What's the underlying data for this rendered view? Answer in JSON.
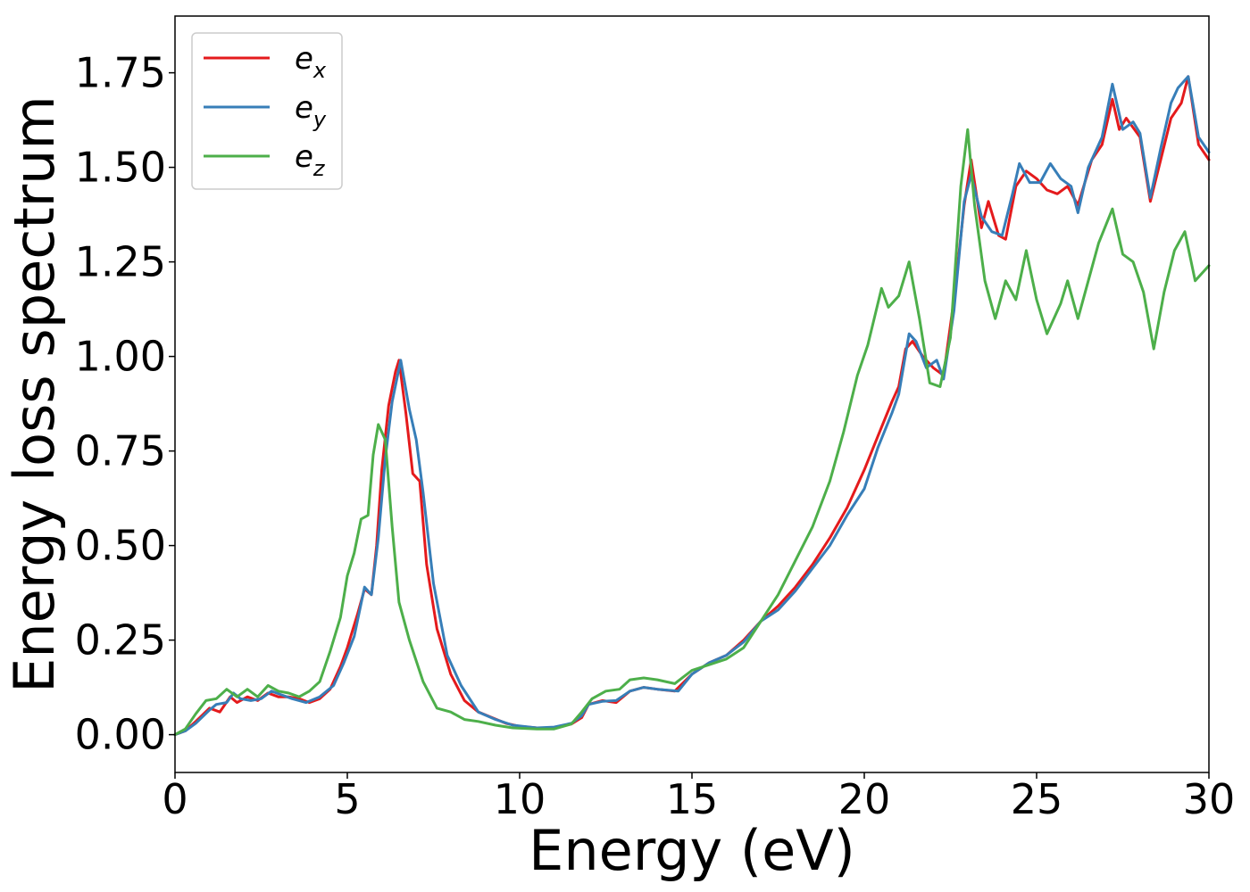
{
  "chart_data": {
    "type": "line",
    "xlabel": "Energy (eV)",
    "ylabel": "Energy loss spectrum",
    "xlim": [
      0,
      30
    ],
    "ylim": [
      -0.1,
      1.9
    ],
    "xticks": [
      {
        "value": 0,
        "label": "0"
      },
      {
        "value": 5,
        "label": "5"
      },
      {
        "value": 10,
        "label": "10"
      },
      {
        "value": 15,
        "label": "15"
      },
      {
        "value": 20,
        "label": "20"
      },
      {
        "value": 25,
        "label": "25"
      },
      {
        "value": 30,
        "label": "30"
      }
    ],
    "yticks": [
      {
        "value": 0.0,
        "label": "0.00"
      },
      {
        "value": 0.25,
        "label": "0.25"
      },
      {
        "value": 0.5,
        "label": "0.50"
      },
      {
        "value": 0.75,
        "label": "0.75"
      },
      {
        "value": 1.0,
        "label": "1.00"
      },
      {
        "value": 1.25,
        "label": "1.25"
      },
      {
        "value": 1.5,
        "label": "1.50"
      },
      {
        "value": 1.75,
        "label": "1.75"
      }
    ],
    "grid": false,
    "legend_position": "top-left",
    "series": [
      {
        "name": "e",
        "subscript": "x",
        "color": "#e41a1c",
        "points": [
          [
            0,
            0
          ],
          [
            0.3,
            0.01
          ],
          [
            0.6,
            0.035
          ],
          [
            1.0,
            0.07
          ],
          [
            1.3,
            0.06
          ],
          [
            1.6,
            0.1
          ],
          [
            1.8,
            0.085
          ],
          [
            2.1,
            0.1
          ],
          [
            2.4,
            0.09
          ],
          [
            2.7,
            0.11
          ],
          [
            3.0,
            0.1
          ],
          [
            3.3,
            0.1
          ],
          [
            3.6,
            0.095
          ],
          [
            3.9,
            0.085
          ],
          [
            4.2,
            0.095
          ],
          [
            4.5,
            0.12
          ],
          [
            4.8,
            0.18
          ],
          [
            5.0,
            0.23
          ],
          [
            5.3,
            0.32
          ],
          [
            5.5,
            0.385
          ],
          [
            5.7,
            0.37
          ],
          [
            5.85,
            0.5
          ],
          [
            6.0,
            0.7
          ],
          [
            6.2,
            0.87
          ],
          [
            6.4,
            0.96
          ],
          [
            6.5,
            0.99
          ],
          [
            6.7,
            0.85
          ],
          [
            6.9,
            0.69
          ],
          [
            7.1,
            0.67
          ],
          [
            7.3,
            0.45
          ],
          [
            7.6,
            0.28
          ],
          [
            8.0,
            0.16
          ],
          [
            8.4,
            0.09
          ],
          [
            8.8,
            0.06
          ],
          [
            9.2,
            0.045
          ],
          [
            9.6,
            0.03
          ],
          [
            10.0,
            0.022
          ],
          [
            10.5,
            0.018
          ],
          [
            11.0,
            0.018
          ],
          [
            11.5,
            0.028
          ],
          [
            11.8,
            0.045
          ],
          [
            12.0,
            0.08
          ],
          [
            12.4,
            0.09
          ],
          [
            12.8,
            0.085
          ],
          [
            13.2,
            0.115
          ],
          [
            13.6,
            0.125
          ],
          [
            14.0,
            0.12
          ],
          [
            14.5,
            0.115
          ],
          [
            15.0,
            0.16
          ],
          [
            15.5,
            0.19
          ],
          [
            16.0,
            0.21
          ],
          [
            16.5,
            0.25
          ],
          [
            17.0,
            0.3
          ],
          [
            17.5,
            0.34
          ],
          [
            18.0,
            0.39
          ],
          [
            18.5,
            0.45
          ],
          [
            19.0,
            0.52
          ],
          [
            19.5,
            0.6
          ],
          [
            20.0,
            0.7
          ],
          [
            20.4,
            0.79
          ],
          [
            20.8,
            0.88
          ],
          [
            21.0,
            0.92
          ],
          [
            21.2,
            1.02
          ],
          [
            21.4,
            1.04
          ],
          [
            21.7,
            1.0
          ],
          [
            22.0,
            0.97
          ],
          [
            22.3,
            0.95
          ],
          [
            22.6,
            1.15
          ],
          [
            22.9,
            1.4
          ],
          [
            23.1,
            1.52
          ],
          [
            23.4,
            1.34
          ],
          [
            23.6,
            1.41
          ],
          [
            23.9,
            1.32
          ],
          [
            24.1,
            1.31
          ],
          [
            24.4,
            1.45
          ],
          [
            24.7,
            1.49
          ],
          [
            25.0,
            1.47
          ],
          [
            25.3,
            1.44
          ],
          [
            25.6,
            1.43
          ],
          [
            25.9,
            1.45
          ],
          [
            26.2,
            1.4
          ],
          [
            26.6,
            1.52
          ],
          [
            26.9,
            1.56
          ],
          [
            27.2,
            1.68
          ],
          [
            27.4,
            1.6
          ],
          [
            27.6,
            1.63
          ],
          [
            28.0,
            1.58
          ],
          [
            28.3,
            1.41
          ],
          [
            28.6,
            1.52
          ],
          [
            28.9,
            1.63
          ],
          [
            29.2,
            1.67
          ],
          [
            29.4,
            1.74
          ],
          [
            29.7,
            1.56
          ],
          [
            30.0,
            1.52
          ]
        ]
      },
      {
        "name": "e",
        "subscript": "y",
        "color": "#377eb8",
        "points": [
          [
            0,
            0
          ],
          [
            0.3,
            0.01
          ],
          [
            0.6,
            0.03
          ],
          [
            1.0,
            0.065
          ],
          [
            1.2,
            0.08
          ],
          [
            1.5,
            0.085
          ],
          [
            1.7,
            0.11
          ],
          [
            1.9,
            0.095
          ],
          [
            2.2,
            0.09
          ],
          [
            2.5,
            0.095
          ],
          [
            2.8,
            0.115
          ],
          [
            3.1,
            0.105
          ],
          [
            3.4,
            0.095
          ],
          [
            3.8,
            0.085
          ],
          [
            4.2,
            0.1
          ],
          [
            4.6,
            0.13
          ],
          [
            4.9,
            0.19
          ],
          [
            5.2,
            0.26
          ],
          [
            5.5,
            0.39
          ],
          [
            5.7,
            0.37
          ],
          [
            5.9,
            0.52
          ],
          [
            6.1,
            0.73
          ],
          [
            6.3,
            0.88
          ],
          [
            6.55,
            0.99
          ],
          [
            6.8,
            0.86
          ],
          [
            7.0,
            0.78
          ],
          [
            7.2,
            0.64
          ],
          [
            7.5,
            0.4
          ],
          [
            7.9,
            0.21
          ],
          [
            8.3,
            0.13
          ],
          [
            8.8,
            0.06
          ],
          [
            9.3,
            0.04
          ],
          [
            9.8,
            0.025
          ],
          [
            10.5,
            0.018
          ],
          [
            11.0,
            0.02
          ],
          [
            11.5,
            0.03
          ],
          [
            11.8,
            0.05
          ],
          [
            12.0,
            0.08
          ],
          [
            12.4,
            0.088
          ],
          [
            12.8,
            0.09
          ],
          [
            13.2,
            0.115
          ],
          [
            13.6,
            0.125
          ],
          [
            14.0,
            0.12
          ],
          [
            14.6,
            0.115
          ],
          [
            15.0,
            0.16
          ],
          [
            15.5,
            0.19
          ],
          [
            16.0,
            0.21
          ],
          [
            16.5,
            0.245
          ],
          [
            17.0,
            0.3
          ],
          [
            17.5,
            0.33
          ],
          [
            18.0,
            0.38
          ],
          [
            18.5,
            0.44
          ],
          [
            19.0,
            0.5
          ],
          [
            19.5,
            0.58
          ],
          [
            20.0,
            0.65
          ],
          [
            20.4,
            0.76
          ],
          [
            20.8,
            0.85
          ],
          [
            21.0,
            0.9
          ],
          [
            21.3,
            1.06
          ],
          [
            21.5,
            1.04
          ],
          [
            21.8,
            0.97
          ],
          [
            22.1,
            0.99
          ],
          [
            22.3,
            0.94
          ],
          [
            22.6,
            1.12
          ],
          [
            22.9,
            1.41
          ],
          [
            23.1,
            1.48
          ],
          [
            23.4,
            1.37
          ],
          [
            23.7,
            1.33
          ],
          [
            24.0,
            1.32
          ],
          [
            24.3,
            1.43
          ],
          [
            24.5,
            1.51
          ],
          [
            24.8,
            1.46
          ],
          [
            25.1,
            1.46
          ],
          [
            25.4,
            1.51
          ],
          [
            25.7,
            1.47
          ],
          [
            26.0,
            1.45
          ],
          [
            26.2,
            1.38
          ],
          [
            26.5,
            1.5
          ],
          [
            26.9,
            1.58
          ],
          [
            27.2,
            1.72
          ],
          [
            27.5,
            1.6
          ],
          [
            27.8,
            1.62
          ],
          [
            28.0,
            1.59
          ],
          [
            28.3,
            1.42
          ],
          [
            28.6,
            1.55
          ],
          [
            28.9,
            1.67
          ],
          [
            29.1,
            1.71
          ],
          [
            29.4,
            1.74
          ],
          [
            29.7,
            1.58
          ],
          [
            30.0,
            1.54
          ]
        ]
      },
      {
        "name": "e",
        "subscript": "z",
        "color": "#4daf4a",
        "points": [
          [
            0,
            0
          ],
          [
            0.3,
            0.015
          ],
          [
            0.6,
            0.055
          ],
          [
            0.9,
            0.09
          ],
          [
            1.2,
            0.095
          ],
          [
            1.5,
            0.12
          ],
          [
            1.8,
            0.1
          ],
          [
            2.1,
            0.12
          ],
          [
            2.4,
            0.1
          ],
          [
            2.7,
            0.13
          ],
          [
            3.0,
            0.115
          ],
          [
            3.3,
            0.11
          ],
          [
            3.6,
            0.1
          ],
          [
            3.9,
            0.115
          ],
          [
            4.2,
            0.14
          ],
          [
            4.5,
            0.22
          ],
          [
            4.8,
            0.31
          ],
          [
            5.0,
            0.42
          ],
          [
            5.2,
            0.48
          ],
          [
            5.4,
            0.57
          ],
          [
            5.6,
            0.58
          ],
          [
            5.75,
            0.74
          ],
          [
            5.9,
            0.82
          ],
          [
            6.1,
            0.78
          ],
          [
            6.3,
            0.55
          ],
          [
            6.5,
            0.35
          ],
          [
            6.8,
            0.25
          ],
          [
            7.2,
            0.14
          ],
          [
            7.6,
            0.07
          ],
          [
            8.0,
            0.06
          ],
          [
            8.4,
            0.04
          ],
          [
            8.8,
            0.035
          ],
          [
            9.3,
            0.025
          ],
          [
            9.8,
            0.018
          ],
          [
            10.5,
            0.015
          ],
          [
            11.0,
            0.015
          ],
          [
            11.5,
            0.028
          ],
          [
            11.8,
            0.06
          ],
          [
            12.1,
            0.095
          ],
          [
            12.5,
            0.115
          ],
          [
            12.9,
            0.12
          ],
          [
            13.2,
            0.145
          ],
          [
            13.6,
            0.15
          ],
          [
            14.0,
            0.145
          ],
          [
            14.5,
            0.135
          ],
          [
            15.0,
            0.17
          ],
          [
            15.5,
            0.185
          ],
          [
            16.0,
            0.2
          ],
          [
            16.5,
            0.23
          ],
          [
            17.0,
            0.3
          ],
          [
            17.5,
            0.37
          ],
          [
            18.0,
            0.46
          ],
          [
            18.5,
            0.55
          ],
          [
            19.0,
            0.67
          ],
          [
            19.4,
            0.8
          ],
          [
            19.8,
            0.95
          ],
          [
            20.1,
            1.03
          ],
          [
            20.5,
            1.18
          ],
          [
            20.7,
            1.13
          ],
          [
            21.0,
            1.16
          ],
          [
            21.3,
            1.25
          ],
          [
            21.6,
            1.1
          ],
          [
            21.9,
            0.93
          ],
          [
            22.2,
            0.92
          ],
          [
            22.5,
            1.05
          ],
          [
            22.8,
            1.45
          ],
          [
            23.0,
            1.6
          ],
          [
            23.2,
            1.4
          ],
          [
            23.5,
            1.2
          ],
          [
            23.8,
            1.1
          ],
          [
            24.1,
            1.2
          ],
          [
            24.4,
            1.15
          ],
          [
            24.7,
            1.28
          ],
          [
            25.0,
            1.15
          ],
          [
            25.3,
            1.06
          ],
          [
            25.7,
            1.14
          ],
          [
            25.9,
            1.2
          ],
          [
            26.2,
            1.1
          ],
          [
            26.5,
            1.2
          ],
          [
            26.8,
            1.3
          ],
          [
            27.2,
            1.39
          ],
          [
            27.5,
            1.27
          ],
          [
            27.8,
            1.25
          ],
          [
            28.1,
            1.17
          ],
          [
            28.4,
            1.02
          ],
          [
            28.7,
            1.17
          ],
          [
            29.0,
            1.28
          ],
          [
            29.3,
            1.33
          ],
          [
            29.6,
            1.2
          ],
          [
            30.0,
            1.24
          ]
        ]
      }
    ]
  }
}
